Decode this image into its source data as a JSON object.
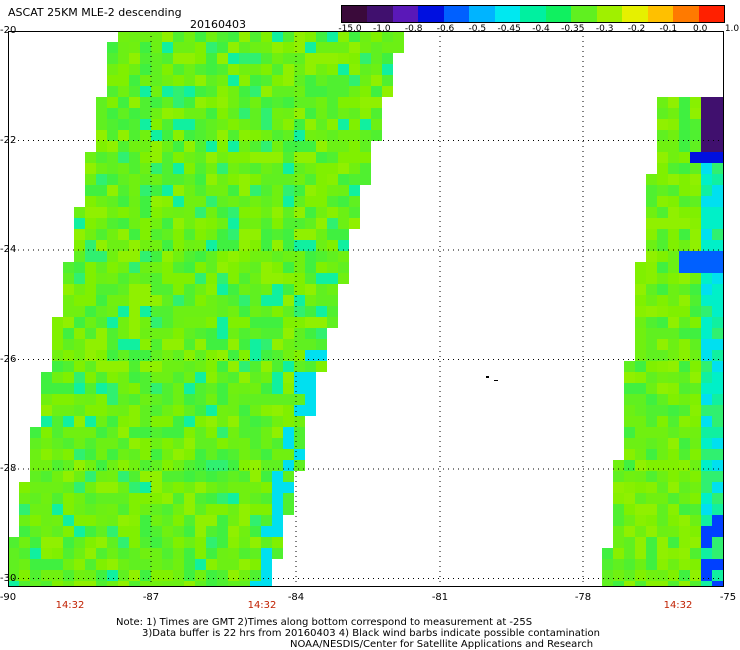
{
  "header": {
    "title": "ASCAT 25KM MLE-2 descending",
    "date": "20160403"
  },
  "colorbar": {
    "labels": [
      "-15.0",
      "-1.0",
      "-0.8",
      "-0.6",
      "-0.5",
      "-0.45",
      "-0.4",
      "-0.35",
      "-0.3",
      "-0.2",
      "-0.1",
      "0.0",
      "1.0"
    ],
    "colors": [
      "#3a0a3a",
      "#40106e",
      "#5a18b8",
      "#0010e0",
      "#0060ff",
      "#00b4ff",
      "#00e8f0",
      "#00f0a0",
      "#10f060",
      "#60f020",
      "#a0f000",
      "#e6f000",
      "#ffc000",
      "#ff7a00",
      "#ff2000"
    ]
  },
  "axes": {
    "y_ticks": [
      "-20",
      "-22",
      "-24",
      "-26",
      "-28",
      "-30"
    ],
    "x_ticks": [
      "-90",
      "-87",
      "-84",
      "-81",
      "-78",
      "-75"
    ],
    "times": [
      "14:32",
      "14:32",
      "14:32"
    ]
  },
  "notes": {
    "line1": "Note: 1) Times are GMT 2)Times along bottom correspond to measurement at -25S",
    "line2": "3)Data buffer is 22 hrs from 20160403 4) Black wind barbs indicate possible contamination",
    "line3": "NOAA/NESDIS/Center for Satellite Applications and Research"
  }
}
